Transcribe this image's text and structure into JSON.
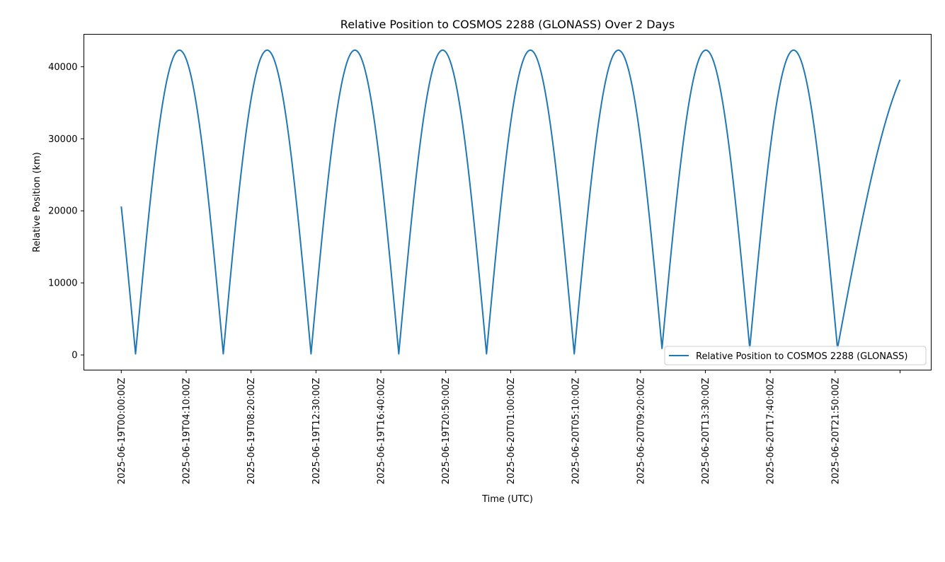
{
  "chart_data": {
    "type": "line",
    "title": "Relative Position to COSMOS 2288 (GLONASS) Over 2 Days",
    "xlabel": "Time (UTC)",
    "ylabel": "Relative Position (km)",
    "x_ticks": [
      "2025-06-19T00:00:00Z",
      "2025-06-19T04:10:00Z",
      "2025-06-19T08:20:00Z",
      "2025-06-19T12:30:00Z",
      "2025-06-19T16:40:00Z",
      "2025-06-19T20:50:00Z",
      "2025-06-20T01:00:00Z",
      "2025-06-20T05:10:00Z",
      "2025-06-20T09:20:00Z",
      "2025-06-20T13:30:00Z",
      "2025-06-20T17:40:00Z",
      "2025-06-20T21:50:00Z"
    ],
    "x_range": [
      "2025-06-18T21:36:00Z",
      "2025-06-21T04:00:00Z"
    ],
    "ylim": [
      -2100,
      44500
    ],
    "y_ticks": [
      0,
      10000,
      20000,
      30000,
      40000
    ],
    "grid": false,
    "legend_position": "lower right",
    "series": [
      {
        "name": "Relative Position to COSMOS 2288 (GLONASS)",
        "color": "#1f77b4",
        "max": 42300,
        "points": [
          {
            "x": "2025-06-19T00:00:00Z",
            "y": 20600
          },
          {
            "x": "2025-06-19T00:55:00Z",
            "y": 150
          },
          {
            "x": "2025-06-19T06:33:00Z",
            "y": 150
          },
          {
            "x": "2025-06-19T12:11:00Z",
            "y": 150
          },
          {
            "x": "2025-06-19T17:49:00Z",
            "y": 150
          },
          {
            "x": "2025-06-19T23:27:00Z",
            "y": 150
          },
          {
            "x": "2025-06-20T05:05:00Z",
            "y": 150
          },
          {
            "x": "2025-06-20T10:43:00Z",
            "y": 900
          },
          {
            "x": "2025-06-20T16:21:00Z",
            "y": 900
          },
          {
            "x": "2025-06-20T21:59:00Z",
            "y": 900
          },
          {
            "x": "2025-06-21T02:00:00Z",
            "y": 38200
          }
        ]
      }
    ]
  }
}
